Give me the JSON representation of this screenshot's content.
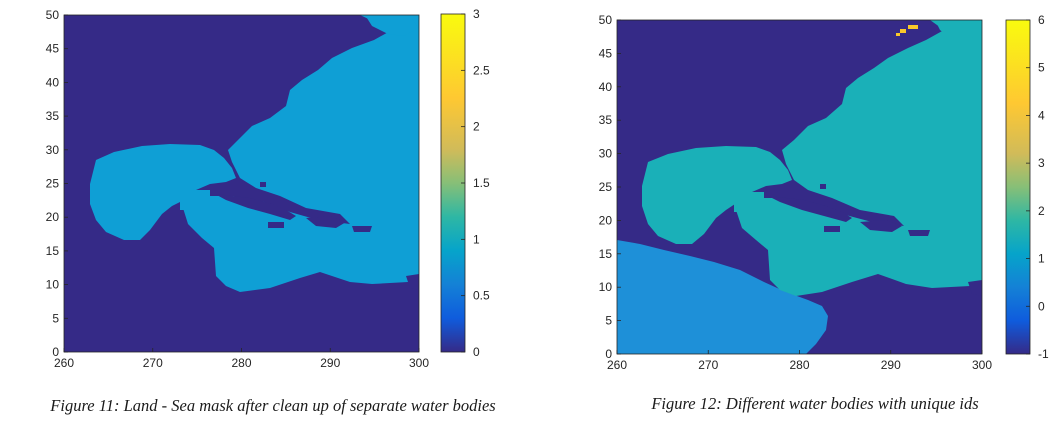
{
  "figures": [
    {
      "caption": "Figure 11: Land - Sea mask after clean up of separate water bodies",
      "chart_data": {
        "type": "heatmap",
        "x_ticks": [
          260,
          270,
          280,
          290,
          300
        ],
        "y_ticks": [
          0,
          5,
          10,
          15,
          20,
          25,
          30,
          35,
          40,
          45,
          50
        ],
        "xlim": [
          260,
          300
        ],
        "ylim": [
          0,
          50
        ],
        "colorbar_ticks": [
          "0",
          "0.5",
          "1",
          "1.5",
          "2",
          "2.5",
          "3"
        ],
        "colorbar_range": [
          0,
          3
        ],
        "cell_values": {
          "land": 0,
          "atlantic_caribbean_gulf": 1
        },
        "colors": {
          "land": "#352a87",
          "atlantic_caribbean_gulf": "#0f9fd5"
        }
      }
    },
    {
      "caption": "Figure 12: Different water bodies with unique ids",
      "chart_data": {
        "type": "heatmap",
        "x_ticks": [
          260,
          270,
          280,
          290,
          300
        ],
        "y_ticks": [
          0,
          5,
          10,
          15,
          20,
          25,
          30,
          35,
          40,
          45,
          50
        ],
        "xlim": [
          260,
          300
        ],
        "ylim": [
          0,
          50
        ],
        "colorbar_ticks": [
          "-1",
          "0",
          "1",
          "2",
          "3",
          "4",
          "5",
          "6"
        ],
        "colorbar_range": [
          -1,
          6
        ],
        "cell_values": {
          "land": -1,
          "pacific": 1,
          "atlantic_caribbean_gulf": 2,
          "small_lake": 5
        },
        "colors": {
          "land": "#352a87",
          "pacific": "#1e90d8",
          "atlantic_caribbean_gulf": "#1ab0b8",
          "small_lake": "#f9c82a"
        }
      }
    }
  ]
}
